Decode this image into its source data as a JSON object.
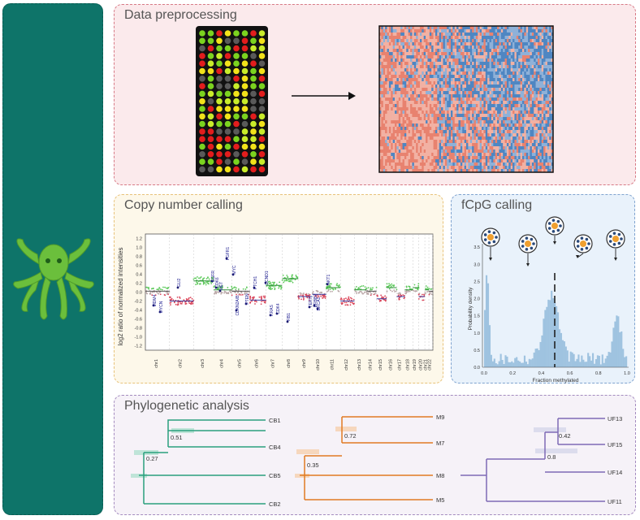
{
  "panels": {
    "preprocessing": {
      "title": "Data preprocessing"
    },
    "copy_number": {
      "title": "Copy number calling",
      "ylabel": "log2 ratio of normalized intensities",
      "yticks": [
        "1.2",
        "1.0",
        "0.8",
        "0.6",
        "0.4",
        "0.2",
        "0.0",
        "-0.2",
        "-0.4",
        "-0.6",
        "-0.8",
        "-1.0",
        "-1.2"
      ],
      "chromosomes": [
        "chr1",
        "chr2",
        "chr3",
        "chr4",
        "chr5",
        "chr6",
        "chr7",
        "chr8",
        "chr9",
        "chr10",
        "chr11",
        "chr12",
        "chr13",
        "chr14",
        "chr15",
        "chr16",
        "chr17",
        "chr18",
        "chr19",
        "chr20",
        "chr21",
        "chr22"
      ],
      "genes": [
        "MDM4",
        "MYCN",
        "GLI2",
        "EGFR",
        "CDK6",
        "MET",
        "FGFR1",
        "MYC",
        "CDKN2A/B",
        "PTEN",
        "PTCH1",
        "CCND1",
        "KRAS",
        "CDK4",
        "RB1",
        "TERT",
        "ERBB2",
        "BRCA1",
        "AKT1"
      ]
    },
    "fcpg": {
      "title": "fCpG calling",
      "ylabel": "Probability density",
      "xlabel": "Fraction methylated",
      "yticks": [
        "3.5",
        "3.0",
        "2.5",
        "2.0",
        "1.5",
        "1.0",
        "0.5",
        "0.0"
      ],
      "xticks": [
        "0.0",
        "0.2",
        "0.4",
        "0.6",
        "0.8",
        "1.0"
      ]
    },
    "phylo": {
      "title": "Phylogenetic analysis",
      "trees": [
        {
          "color": "#2aa07e",
          "leaves": [
            "CB1",
            "CB4",
            "CB5",
            "CB2"
          ],
          "supports": [
            "0.51",
            "0.27"
          ]
        },
        {
          "color": "#e07a22",
          "leaves": [
            "M9",
            "M7",
            "M8",
            "M5"
          ],
          "supports": [
            "0.72",
            "0.35"
          ]
        },
        {
          "color": "#7e6ab5",
          "leaves": [
            "UF13",
            "UF15",
            "UF14",
            "UF11"
          ],
          "supports": [
            "0.42",
            "0.8"
          ]
        }
      ]
    }
  }
}
